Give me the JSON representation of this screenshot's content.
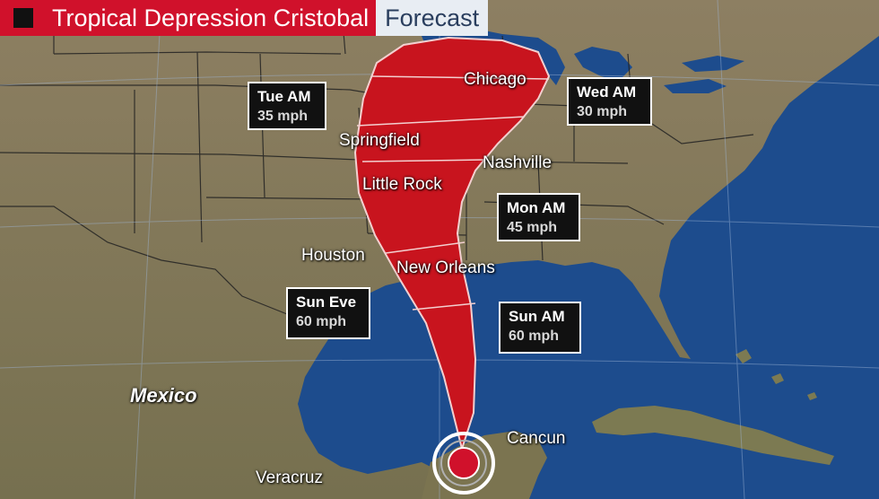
{
  "header": {
    "title": "Tropical Depression Cristobal",
    "subtitle": "Forecast"
  },
  "cities": {
    "chicago": "Chicago",
    "springfield": "Springfield",
    "nashville": "Nashville",
    "little_rock": "Little Rock",
    "houston": "Houston",
    "new_orleans": "New Orleans",
    "cancun": "Cancun",
    "veracruz": "Veracruz"
  },
  "country": "Mexico",
  "forecast_points": {
    "tue_am": {
      "time": "Tue AM",
      "wind": "35 mph"
    },
    "wed_am": {
      "time": "Wed AM",
      "wind": "30 mph"
    },
    "mon_am": {
      "time": "Mon AM",
      "wind": "45 mph"
    },
    "sun_eve": {
      "time": "Sun Eve",
      "wind": "60 mph"
    },
    "sun_am": {
      "time": "Sun AM",
      "wind": "60 mph"
    }
  },
  "colors": {
    "header_red": "#d0112b",
    "cone_red": "#c8141e",
    "ocean": "#1c4b8c",
    "land": "#8a7b5e"
  }
}
